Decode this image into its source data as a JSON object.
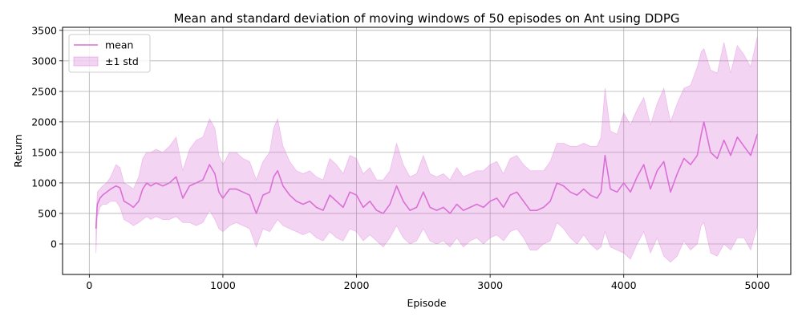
{
  "chart_data": {
    "type": "line",
    "title": "Mean and standard deviation of moving windows of 50 episodes on Ant using DDPG",
    "xlabel": "Episode",
    "ylabel": "Return",
    "xlim": [
      -200,
      5250
    ],
    "ylim": [
      -500,
      3550
    ],
    "x_ticks": [
      0,
      1000,
      2000,
      3000,
      4000,
      5000
    ],
    "y_ticks": [
      0,
      500,
      1000,
      1500,
      2000,
      2500,
      3000,
      3500
    ],
    "grid": true,
    "legend_position": "top-left",
    "colors": {
      "mean": "#DA70D6",
      "band": "#DA70D6"
    },
    "series": [
      {
        "name": "mean",
        "role": "line",
        "x": [
          50,
          60,
          80,
          100,
          130,
          160,
          200,
          230,
          260,
          300,
          330,
          370,
          400,
          430,
          460,
          500,
          550,
          600,
          650,
          700,
          750,
          800,
          850,
          900,
          940,
          970,
          1000,
          1050,
          1100,
          1150,
          1200,
          1250,
          1300,
          1350,
          1380,
          1410,
          1450,
          1500,
          1550,
          1600,
          1650,
          1700,
          1750,
          1800,
          1850,
          1900,
          1950,
          2000,
          2050,
          2100,
          2150,
          2200,
          2250,
          2300,
          2350,
          2400,
          2450,
          2500,
          2550,
          2600,
          2650,
          2700,
          2750,
          2800,
          2850,
          2900,
          2950,
          3000,
          3050,
          3100,
          3150,
          3200,
          3250,
          3300,
          3350,
          3400,
          3450,
          3500,
          3550,
          3600,
          3650,
          3700,
          3750,
          3800,
          3830,
          3860,
          3900,
          3950,
          4000,
          4050,
          4100,
          4150,
          4200,
          4250,
          4300,
          4350,
          4400,
          4450,
          4500,
          4550,
          4580,
          4600,
          4650,
          4700,
          4750,
          4800,
          4850,
          4900,
          4950,
          5000
        ],
        "values": [
          250,
          650,
          750,
          800,
          850,
          900,
          950,
          920,
          700,
          650,
          600,
          700,
          900,
          1000,
          950,
          1000,
          950,
          1000,
          1100,
          750,
          950,
          1000,
          1050,
          1300,
          1150,
          850,
          750,
          900,
          900,
          850,
          800,
          500,
          800,
          850,
          1100,
          1200,
          950,
          800,
          700,
          650,
          700,
          600,
          550,
          800,
          700,
          600,
          850,
          800,
          600,
          700,
          550,
          500,
          650,
          950,
          700,
          550,
          600,
          850,
          600,
          550,
          600,
          500,
          650,
          550,
          600,
          650,
          600,
          700,
          750,
          600,
          800,
          850,
          700,
          550,
          550,
          600,
          700,
          1000,
          950,
          850,
          800,
          900,
          800,
          750,
          850,
          1450,
          900,
          850,
          1000,
          850,
          1100,
          1300,
          900,
          1200,
          1350,
          850,
          1150,
          1400,
          1300,
          1450,
          1800,
          2000,
          1500,
          1400,
          1700,
          1450,
          1750,
          1600,
          1450,
          1800
        ]
      },
      {
        "name": "±1 std",
        "role": "band",
        "x": [
          50,
          60,
          80,
          100,
          130,
          160,
          200,
          230,
          260,
          300,
          330,
          370,
          400,
          430,
          460,
          500,
          550,
          600,
          650,
          700,
          750,
          800,
          850,
          900,
          940,
          970,
          1000,
          1050,
          1100,
          1150,
          1200,
          1250,
          1300,
          1350,
          1380,
          1410,
          1450,
          1500,
          1550,
          1600,
          1650,
          1700,
          1750,
          1800,
          1850,
          1900,
          1950,
          2000,
          2050,
          2100,
          2150,
          2200,
          2250,
          2300,
          2350,
          2400,
          2450,
          2500,
          2550,
          2600,
          2650,
          2700,
          2750,
          2800,
          2850,
          2900,
          2950,
          3000,
          3050,
          3100,
          3150,
          3200,
          3250,
          3300,
          3350,
          3400,
          3450,
          3500,
          3550,
          3600,
          3650,
          3700,
          3750,
          3800,
          3830,
          3860,
          3900,
          3950,
          4000,
          4050,
          4100,
          4150,
          4200,
          4250,
          4300,
          4350,
          4400,
          4450,
          4500,
          4550,
          4580,
          4600,
          4650,
          4700,
          4750,
          4800,
          4850,
          4900,
          4950,
          5000
        ],
        "lower": [
          -150,
          450,
          600,
          650,
          650,
          700,
          700,
          600,
          400,
          350,
          300,
          350,
          400,
          450,
          400,
          450,
          400,
          400,
          450,
          350,
          350,
          300,
          350,
          550,
          400,
          250,
          200,
          300,
          350,
          300,
          250,
          -50,
          250,
          200,
          300,
          400,
          300,
          250,
          200,
          150,
          200,
          100,
          50,
          200,
          100,
          50,
          250,
          200,
          50,
          150,
          50,
          -50,
          100,
          300,
          100,
          0,
          50,
          250,
          50,
          0,
          50,
          -50,
          100,
          -50,
          50,
          100,
          0,
          100,
          150,
          50,
          200,
          250,
          100,
          -100,
          -100,
          0,
          50,
          350,
          250,
          100,
          0,
          150,
          0,
          -100,
          -50,
          200,
          -50,
          -100,
          -150,
          -250,
          0,
          200,
          -150,
          100,
          -200,
          -300,
          -200,
          50,
          -100,
          0,
          300,
          350,
          -150,
          -200,
          0,
          -100,
          100,
          100,
          -100,
          300
        ],
        "upper": [
          250,
          850,
          900,
          950,
          1000,
          1100,
          1300,
          1250,
          1000,
          950,
          900,
          1100,
          1400,
          1500,
          1500,
          1550,
          1500,
          1600,
          1750,
          1200,
          1550,
          1700,
          1750,
          2050,
          1900,
          1450,
          1300,
          1500,
          1500,
          1400,
          1350,
          1050,
          1350,
          1500,
          1900,
          2050,
          1600,
          1350,
          1200,
          1150,
          1200,
          1100,
          1050,
          1400,
          1300,
          1150,
          1450,
          1400,
          1150,
          1250,
          1050,
          1050,
          1200,
          1650,
          1300,
          1100,
          1150,
          1450,
          1150,
          1100,
          1150,
          1050,
          1250,
          1100,
          1150,
          1200,
          1200,
          1300,
          1350,
          1150,
          1400,
          1450,
          1300,
          1200,
          1200,
          1200,
          1350,
          1650,
          1650,
          1600,
          1600,
          1650,
          1600,
          1600,
          1750,
          2550,
          1850,
          1800,
          2150,
          1950,
          2200,
          2400,
          1950,
          2300,
          2550,
          2000,
          2300,
          2550,
          2600,
          2900,
          3150,
          3200,
          2850,
          2800,
          3300,
          2800,
          3250,
          3100,
          2900,
          3400
        ]
      }
    ]
  }
}
